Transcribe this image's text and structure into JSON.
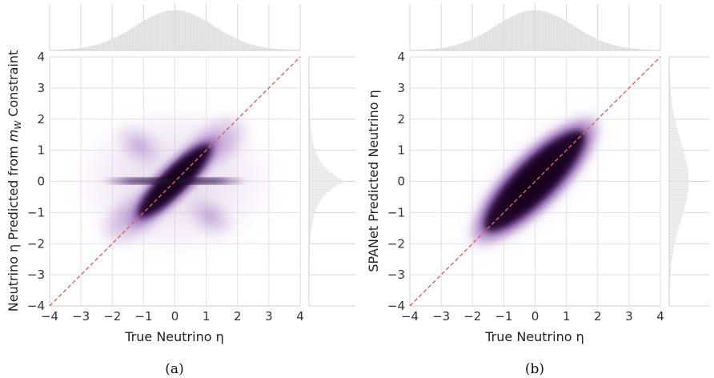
{
  "chart_data": [
    {
      "type": "heatmap",
      "panel_caption": "(a)",
      "xlabel": "True Neutrino η",
      "ylabel": "Neutrino η Predicted from m_W Constraint",
      "ylabel_parts": {
        "before": "Neutrino η Predicted from ",
        "m": "m",
        "sub": "W",
        "after": " Constraint"
      },
      "xlim": [
        -4,
        4
      ],
      "ylim": [
        -4,
        4
      ],
      "xticks": [
        "−4",
        "−3",
        "−2",
        "−1",
        "0",
        "1",
        "2",
        "3",
        "4"
      ],
      "yticks": [
        "−4",
        "−3",
        "−2",
        "−1",
        "0",
        "1",
        "2",
        "3",
        "4"
      ],
      "reference_line": {
        "style": "dashed",
        "color": "#d9645f",
        "from": [
          -4,
          -4
        ],
        "to": [
          4,
          4
        ]
      },
      "colormap": [
        "#ffffff",
        "#e7d9ee",
        "#b48ccc",
        "#7a3fa0",
        "#1a0a22"
      ],
      "density_features": [
        {
          "shape": "diagonal-core",
          "x": [
            -1.2,
            1.2
          ],
          "y": [
            -1.2,
            1.2
          ]
        },
        {
          "shape": "horizontal-band",
          "y": 0,
          "x": [
            -2.2,
            2.2
          ]
        },
        {
          "shape": "bowtie-lobes",
          "lobe_y": [
            -1.5,
            1.5
          ]
        }
      ],
      "marginal_x": "gaussian histogram centered at 0",
      "marginal_y": "peaked histogram centered at 0"
    },
    {
      "type": "heatmap",
      "panel_caption": "(b)",
      "xlabel": "True Neutrino η",
      "ylabel": "SPANet Predicted Neutrino η",
      "xlim": [
        -4,
        4
      ],
      "ylim": [
        -4,
        4
      ],
      "xticks": [
        "−4",
        "−3",
        "−2",
        "−1",
        "0",
        "1",
        "2",
        "3",
        "4"
      ],
      "yticks": [
        "−4",
        "−3",
        "−2",
        "−1",
        "0",
        "1",
        "2",
        "3",
        "4"
      ],
      "reference_line": {
        "style": "dashed",
        "color": "#d9645f",
        "from": [
          -4,
          -4
        ],
        "to": [
          4,
          4
        ]
      },
      "colormap": [
        "#ffffff",
        "#e7d9ee",
        "#b48ccc",
        "#7a3fa0",
        "#1a0a22"
      ],
      "density_features": [
        {
          "shape": "diagonal-ellipse",
          "x": [
            -2.2,
            2.2
          ],
          "y": [
            -2.2,
            2.2
          ],
          "rotation_deg": 45
        }
      ],
      "marginal_x": "gaussian histogram centered at 0",
      "marginal_y": "broad histogram centered at 0"
    }
  ]
}
